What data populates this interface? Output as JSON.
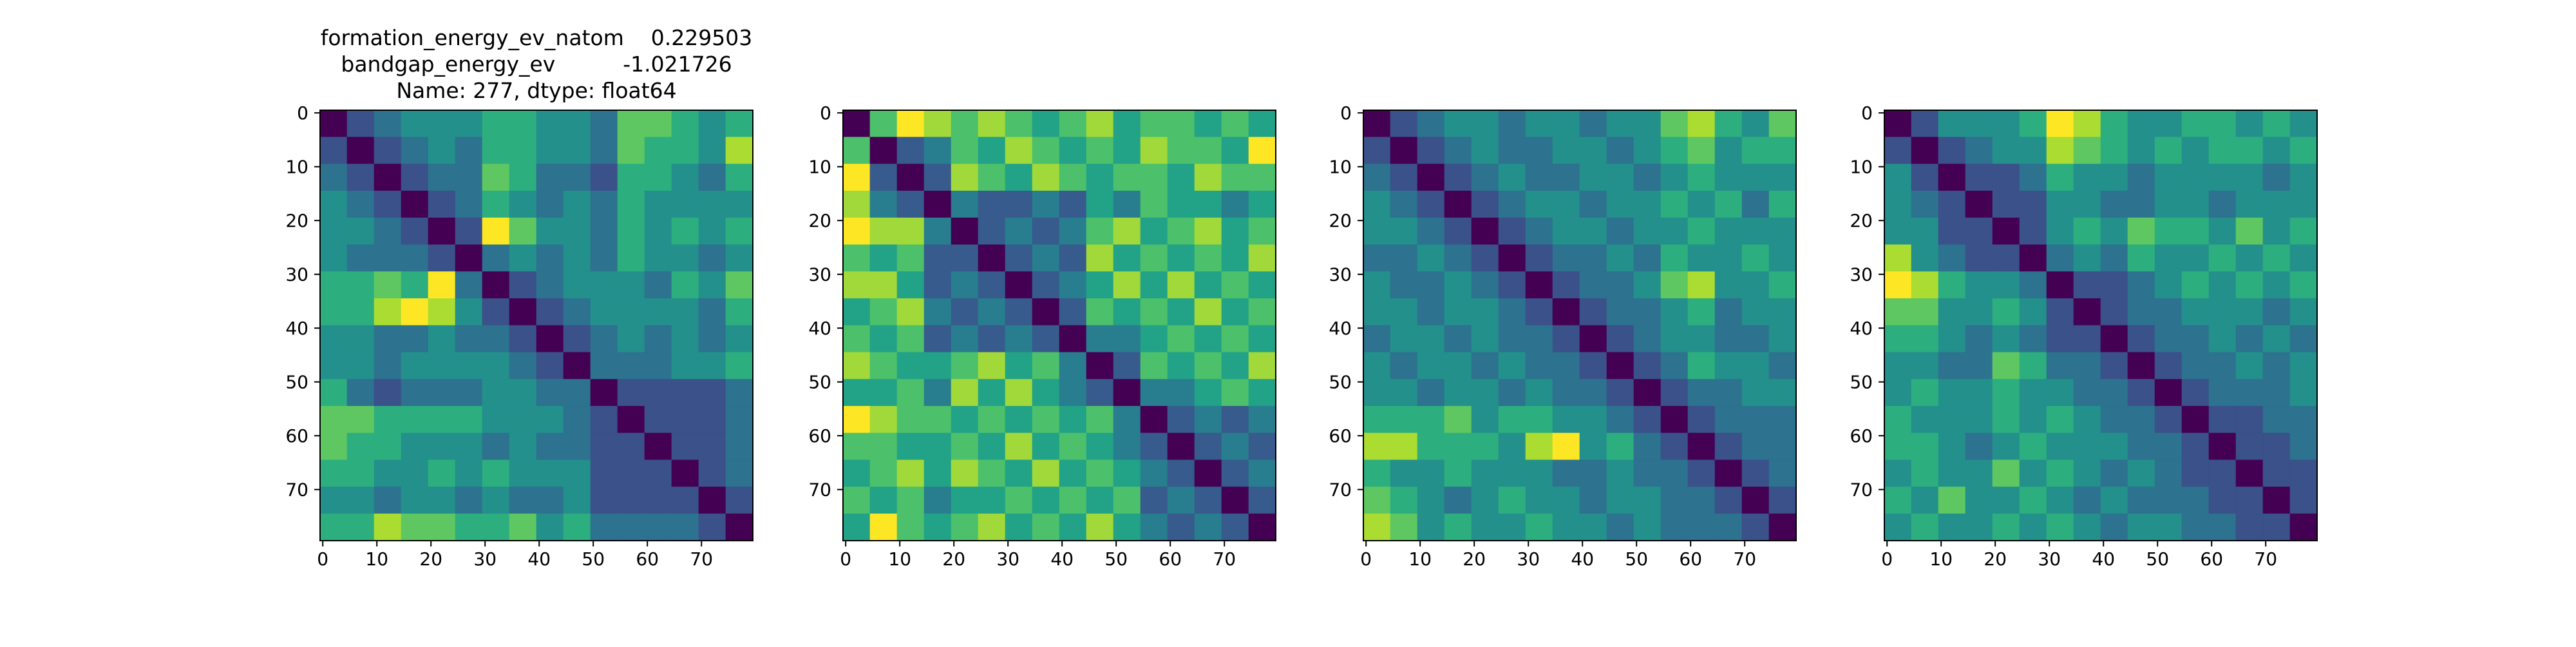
{
  "chart_data": [
    {
      "type": "heatmap",
      "colormap": "viridis",
      "title": [
        "formation_energy_ev_natom    0.229503",
        "bandgap_energy_ev          -1.021726",
        "Name: 277, dtype: float64"
      ],
      "xlim": [
        -0.5,
        79.5
      ],
      "ylim": [
        79.5,
        -0.5
      ],
      "xticks": [
        0,
        10,
        20,
        30,
        40,
        50,
        60,
        70
      ],
      "yticks": [
        0,
        10,
        20,
        30,
        40,
        50,
        60,
        70
      ],
      "z": [
        [
          0.1,
          0.3,
          0.4,
          0.5,
          0.5,
          0.5,
          0.6,
          0.6,
          0.5,
          0.5,
          0.4,
          0.7,
          0.7,
          0.6,
          0.5,
          0.6
        ],
        [
          0.3,
          0.1,
          0.3,
          0.4,
          0.5,
          0.4,
          0.6,
          0.6,
          0.5,
          0.5,
          0.4,
          0.7,
          0.6,
          0.6,
          0.5,
          0.8
        ],
        [
          0.4,
          0.3,
          0.1,
          0.3,
          0.4,
          0.4,
          0.7,
          0.6,
          0.4,
          0.4,
          0.3,
          0.6,
          0.6,
          0.5,
          0.4,
          0.6
        ],
        [
          0.5,
          0.4,
          0.3,
          0.1,
          0.3,
          0.4,
          0.6,
          0.5,
          0.4,
          0.5,
          0.4,
          0.6,
          0.5,
          0.5,
          0.5,
          0.5
        ],
        [
          0.5,
          0.5,
          0.4,
          0.3,
          0.1,
          0.3,
          0.9,
          0.7,
          0.5,
          0.5,
          0.4,
          0.6,
          0.5,
          0.6,
          0.5,
          0.6
        ],
        [
          0.5,
          0.4,
          0.4,
          0.4,
          0.3,
          0.1,
          0.4,
          0.5,
          0.4,
          0.5,
          0.4,
          0.6,
          0.5,
          0.5,
          0.4,
          0.5
        ],
        [
          0.6,
          0.6,
          0.7,
          0.6,
          0.9,
          0.4,
          0.1,
          0.3,
          0.4,
          0.5,
          0.5,
          0.5,
          0.4,
          0.6,
          0.5,
          0.7
        ],
        [
          0.6,
          0.6,
          0.8,
          0.9,
          0.8,
          0.5,
          0.3,
          0.1,
          0.3,
          0.4,
          0.5,
          0.5,
          0.5,
          0.5,
          0.4,
          0.6
        ],
        [
          0.5,
          0.5,
          0.4,
          0.4,
          0.5,
          0.4,
          0.4,
          0.3,
          0.1,
          0.3,
          0.4,
          0.5,
          0.4,
          0.5,
          0.4,
          0.5
        ],
        [
          0.5,
          0.5,
          0.4,
          0.5,
          0.5,
          0.5,
          0.5,
          0.4,
          0.3,
          0.1,
          0.4,
          0.4,
          0.4,
          0.5,
          0.5,
          0.6
        ],
        [
          0.6,
          0.4,
          0.3,
          0.4,
          0.4,
          0.4,
          0.5,
          0.5,
          0.4,
          0.4,
          0.1,
          0.3,
          0.3,
          0.3,
          0.3,
          0.4
        ],
        [
          0.7,
          0.7,
          0.6,
          0.6,
          0.6,
          0.6,
          0.5,
          0.5,
          0.5,
          0.4,
          0.3,
          0.1,
          0.3,
          0.3,
          0.3,
          0.4
        ],
        [
          0.7,
          0.6,
          0.6,
          0.5,
          0.5,
          0.5,
          0.4,
          0.5,
          0.4,
          0.4,
          0.3,
          0.3,
          0.1,
          0.3,
          0.3,
          0.4
        ],
        [
          0.6,
          0.6,
          0.5,
          0.5,
          0.6,
          0.5,
          0.6,
          0.5,
          0.5,
          0.5,
          0.3,
          0.3,
          0.3,
          0.1,
          0.3,
          0.4
        ],
        [
          0.5,
          0.5,
          0.4,
          0.5,
          0.5,
          0.4,
          0.5,
          0.4,
          0.4,
          0.5,
          0.3,
          0.3,
          0.3,
          0.3,
          0.1,
          0.3
        ],
        [
          0.6,
          0.6,
          0.8,
          0.7,
          0.7,
          0.6,
          0.6,
          0.7,
          0.5,
          0.6,
          0.4,
          0.4,
          0.4,
          0.4,
          0.3,
          0.1
        ]
      ]
    },
    {
      "type": "heatmap",
      "colormap": "viridis",
      "xlim": [
        -0.5,
        79.5
      ],
      "ylim": [
        79.5,
        -0.5
      ],
      "xticks": [
        0,
        10,
        20,
        30,
        40,
        50,
        60,
        70
      ],
      "yticks": [
        0,
        10,
        20,
        30,
        40,
        50,
        60,
        70
      ],
      "z": [
        [
          0.1,
          0.6,
          0.8,
          0.7,
          0.6,
          0.7,
          0.6,
          0.5,
          0.6,
          0.7,
          0.5,
          0.6,
          0.6,
          0.5,
          0.6,
          0.5
        ],
        [
          0.6,
          0.1,
          0.3,
          0.4,
          0.6,
          0.5,
          0.7,
          0.6,
          0.5,
          0.6,
          0.5,
          0.7,
          0.6,
          0.6,
          0.5,
          0.8
        ],
        [
          0.8,
          0.3,
          0.1,
          0.3,
          0.7,
          0.6,
          0.5,
          0.7,
          0.6,
          0.5,
          0.6,
          0.6,
          0.5,
          0.7,
          0.6,
          0.6
        ],
        [
          0.7,
          0.4,
          0.3,
          0.1,
          0.4,
          0.3,
          0.3,
          0.4,
          0.3,
          0.5,
          0.4,
          0.6,
          0.5,
          0.5,
          0.4,
          0.5
        ],
        [
          0.8,
          0.7,
          0.7,
          0.4,
          0.1,
          0.3,
          0.4,
          0.3,
          0.4,
          0.6,
          0.7,
          0.5,
          0.6,
          0.7,
          0.5,
          0.6
        ],
        [
          0.6,
          0.5,
          0.6,
          0.3,
          0.3,
          0.1,
          0.3,
          0.4,
          0.3,
          0.7,
          0.5,
          0.6,
          0.5,
          0.6,
          0.5,
          0.7
        ],
        [
          0.7,
          0.7,
          0.5,
          0.3,
          0.4,
          0.3,
          0.1,
          0.3,
          0.4,
          0.5,
          0.7,
          0.5,
          0.7,
          0.5,
          0.6,
          0.5
        ],
        [
          0.5,
          0.6,
          0.7,
          0.4,
          0.3,
          0.4,
          0.3,
          0.1,
          0.3,
          0.6,
          0.5,
          0.6,
          0.5,
          0.7,
          0.5,
          0.6
        ],
        [
          0.6,
          0.5,
          0.6,
          0.3,
          0.4,
          0.3,
          0.4,
          0.3,
          0.1,
          0.4,
          0.4,
          0.5,
          0.6,
          0.5,
          0.6,
          0.5
        ],
        [
          0.7,
          0.6,
          0.5,
          0.5,
          0.6,
          0.7,
          0.5,
          0.6,
          0.4,
          0.1,
          0.3,
          0.6,
          0.5,
          0.6,
          0.5,
          0.7
        ],
        [
          0.5,
          0.5,
          0.6,
          0.4,
          0.7,
          0.5,
          0.7,
          0.5,
          0.4,
          0.3,
          0.1,
          0.4,
          0.4,
          0.5,
          0.6,
          0.5
        ],
        [
          0.8,
          0.7,
          0.6,
          0.6,
          0.5,
          0.6,
          0.5,
          0.6,
          0.5,
          0.6,
          0.4,
          0.1,
          0.3,
          0.4,
          0.3,
          0.4
        ],
        [
          0.6,
          0.6,
          0.5,
          0.5,
          0.6,
          0.5,
          0.7,
          0.5,
          0.6,
          0.5,
          0.4,
          0.3,
          0.1,
          0.3,
          0.4,
          0.3
        ],
        [
          0.5,
          0.6,
          0.7,
          0.5,
          0.7,
          0.6,
          0.5,
          0.7,
          0.5,
          0.6,
          0.5,
          0.4,
          0.3,
          0.1,
          0.3,
          0.4
        ],
        [
          0.6,
          0.5,
          0.6,
          0.4,
          0.5,
          0.5,
          0.6,
          0.5,
          0.6,
          0.5,
          0.6,
          0.3,
          0.4,
          0.3,
          0.1,
          0.3
        ],
        [
          0.5,
          0.8,
          0.6,
          0.5,
          0.6,
          0.7,
          0.5,
          0.6,
          0.5,
          0.7,
          0.5,
          0.4,
          0.3,
          0.4,
          0.3,
          0.1
        ]
      ]
    },
    {
      "type": "heatmap",
      "colormap": "viridis",
      "xlim": [
        -0.5,
        79.5
      ],
      "ylim": [
        79.5,
        -0.5
      ],
      "xticks": [
        0,
        10,
        20,
        30,
        40,
        50,
        60,
        70
      ],
      "yticks": [
        0,
        10,
        20,
        30,
        40,
        50,
        60,
        70
      ],
      "z": [
        [
          0.1,
          0.3,
          0.4,
          0.5,
          0.5,
          0.4,
          0.5,
          0.5,
          0.4,
          0.5,
          0.5,
          0.7,
          0.8,
          0.6,
          0.5,
          0.7
        ],
        [
          0.3,
          0.1,
          0.3,
          0.4,
          0.5,
          0.4,
          0.4,
          0.5,
          0.5,
          0.4,
          0.5,
          0.6,
          0.7,
          0.5,
          0.6,
          0.6
        ],
        [
          0.4,
          0.3,
          0.1,
          0.3,
          0.4,
          0.5,
          0.4,
          0.4,
          0.5,
          0.5,
          0.4,
          0.5,
          0.6,
          0.5,
          0.5,
          0.5
        ],
        [
          0.5,
          0.4,
          0.3,
          0.1,
          0.3,
          0.4,
          0.5,
          0.5,
          0.4,
          0.5,
          0.5,
          0.6,
          0.5,
          0.6,
          0.4,
          0.6
        ],
        [
          0.5,
          0.5,
          0.4,
          0.3,
          0.1,
          0.3,
          0.4,
          0.5,
          0.5,
          0.4,
          0.5,
          0.5,
          0.6,
          0.5,
          0.5,
          0.5
        ],
        [
          0.4,
          0.4,
          0.5,
          0.4,
          0.3,
          0.1,
          0.3,
          0.4,
          0.4,
          0.5,
          0.4,
          0.6,
          0.5,
          0.5,
          0.6,
          0.5
        ],
        [
          0.5,
          0.4,
          0.4,
          0.5,
          0.4,
          0.3,
          0.1,
          0.3,
          0.4,
          0.4,
          0.5,
          0.7,
          0.8,
          0.5,
          0.5,
          0.6
        ],
        [
          0.5,
          0.5,
          0.4,
          0.5,
          0.5,
          0.4,
          0.3,
          0.1,
          0.3,
          0.4,
          0.4,
          0.5,
          0.6,
          0.4,
          0.5,
          0.5
        ],
        [
          0.4,
          0.5,
          0.5,
          0.4,
          0.5,
          0.4,
          0.4,
          0.3,
          0.1,
          0.3,
          0.4,
          0.5,
          0.5,
          0.4,
          0.4,
          0.5
        ],
        [
          0.5,
          0.4,
          0.5,
          0.5,
          0.4,
          0.5,
          0.4,
          0.4,
          0.3,
          0.1,
          0.3,
          0.4,
          0.6,
          0.5,
          0.5,
          0.4
        ],
        [
          0.5,
          0.5,
          0.4,
          0.5,
          0.5,
          0.4,
          0.5,
          0.4,
          0.4,
          0.3,
          0.1,
          0.3,
          0.4,
          0.4,
          0.5,
          0.5
        ],
        [
          0.6,
          0.6,
          0.6,
          0.7,
          0.5,
          0.6,
          0.6,
          0.5,
          0.5,
          0.4,
          0.3,
          0.1,
          0.3,
          0.4,
          0.4,
          0.4
        ],
        [
          0.8,
          0.8,
          0.6,
          0.6,
          0.6,
          0.5,
          0.8,
          0.9,
          0.5,
          0.6,
          0.4,
          0.3,
          0.1,
          0.3,
          0.4,
          0.4
        ],
        [
          0.6,
          0.5,
          0.5,
          0.6,
          0.5,
          0.5,
          0.5,
          0.4,
          0.4,
          0.5,
          0.4,
          0.4,
          0.3,
          0.1,
          0.3,
          0.4
        ],
        [
          0.7,
          0.6,
          0.5,
          0.4,
          0.5,
          0.6,
          0.5,
          0.5,
          0.4,
          0.5,
          0.5,
          0.4,
          0.4,
          0.3,
          0.1,
          0.3
        ],
        [
          0.8,
          0.7,
          0.5,
          0.6,
          0.5,
          0.5,
          0.6,
          0.5,
          0.5,
          0.4,
          0.5,
          0.4,
          0.4,
          0.4,
          0.3,
          0.1
        ]
      ]
    },
    {
      "type": "heatmap",
      "colormap": "viridis",
      "xlim": [
        -0.5,
        79.5
      ],
      "ylim": [
        79.5,
        -0.5
      ],
      "xticks": [
        0,
        10,
        20,
        30,
        40,
        50,
        60,
        70
      ],
      "yticks": [
        0,
        10,
        20,
        30,
        40,
        50,
        60,
        70
      ],
      "z": [
        [
          0.1,
          0.3,
          0.5,
          0.5,
          0.5,
          0.6,
          0.9,
          0.8,
          0.6,
          0.5,
          0.5,
          0.6,
          0.6,
          0.5,
          0.6,
          0.5
        ],
        [
          0.3,
          0.1,
          0.3,
          0.4,
          0.5,
          0.5,
          0.8,
          0.7,
          0.6,
          0.5,
          0.6,
          0.5,
          0.6,
          0.6,
          0.5,
          0.6
        ],
        [
          0.5,
          0.3,
          0.1,
          0.3,
          0.3,
          0.4,
          0.6,
          0.5,
          0.5,
          0.4,
          0.5,
          0.5,
          0.5,
          0.5,
          0.4,
          0.5
        ],
        [
          0.5,
          0.4,
          0.3,
          0.1,
          0.3,
          0.3,
          0.5,
          0.5,
          0.4,
          0.4,
          0.5,
          0.5,
          0.4,
          0.5,
          0.5,
          0.5
        ],
        [
          0.5,
          0.5,
          0.3,
          0.3,
          0.1,
          0.3,
          0.5,
          0.6,
          0.5,
          0.7,
          0.6,
          0.6,
          0.5,
          0.7,
          0.5,
          0.6
        ],
        [
          0.8,
          0.5,
          0.4,
          0.3,
          0.3,
          0.1,
          0.4,
          0.5,
          0.4,
          0.6,
          0.5,
          0.5,
          0.6,
          0.5,
          0.6,
          0.5
        ],
        [
          0.9,
          0.8,
          0.6,
          0.5,
          0.5,
          0.4,
          0.1,
          0.3,
          0.3,
          0.4,
          0.5,
          0.6,
          0.5,
          0.6,
          0.5,
          0.6
        ],
        [
          0.7,
          0.7,
          0.5,
          0.5,
          0.6,
          0.5,
          0.3,
          0.1,
          0.3,
          0.4,
          0.4,
          0.5,
          0.5,
          0.5,
          0.4,
          0.5
        ],
        [
          0.6,
          0.6,
          0.5,
          0.4,
          0.5,
          0.4,
          0.3,
          0.3,
          0.1,
          0.3,
          0.4,
          0.4,
          0.5,
          0.4,
          0.5,
          0.4
        ],
        [
          0.5,
          0.5,
          0.4,
          0.4,
          0.7,
          0.6,
          0.4,
          0.4,
          0.3,
          0.1,
          0.3,
          0.4,
          0.4,
          0.5,
          0.4,
          0.5
        ],
        [
          0.5,
          0.6,
          0.5,
          0.5,
          0.6,
          0.5,
          0.5,
          0.4,
          0.4,
          0.3,
          0.1,
          0.3,
          0.4,
          0.4,
          0.4,
          0.5
        ],
        [
          0.6,
          0.5,
          0.5,
          0.5,
          0.6,
          0.5,
          0.6,
          0.5,
          0.4,
          0.4,
          0.3,
          0.1,
          0.3,
          0.3,
          0.4,
          0.4
        ],
        [
          0.6,
          0.6,
          0.5,
          0.4,
          0.5,
          0.6,
          0.5,
          0.5,
          0.5,
          0.4,
          0.4,
          0.3,
          0.1,
          0.3,
          0.3,
          0.4
        ],
        [
          0.5,
          0.6,
          0.5,
          0.5,
          0.7,
          0.5,
          0.6,
          0.5,
          0.4,
          0.5,
          0.4,
          0.3,
          0.3,
          0.1,
          0.3,
          0.3
        ],
        [
          0.6,
          0.5,
          0.7,
          0.5,
          0.5,
          0.6,
          0.5,
          0.4,
          0.5,
          0.4,
          0.4,
          0.4,
          0.3,
          0.3,
          0.1,
          0.3
        ],
        [
          0.5,
          0.6,
          0.5,
          0.5,
          0.6,
          0.5,
          0.6,
          0.5,
          0.4,
          0.5,
          0.5,
          0.4,
          0.4,
          0.3,
          0.3,
          0.1
        ]
      ]
    }
  ]
}
